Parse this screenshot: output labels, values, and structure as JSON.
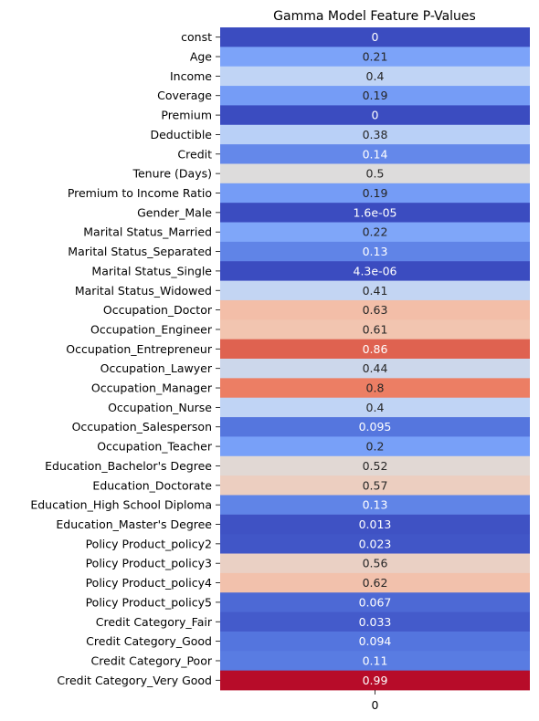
{
  "chart_data": {
    "type": "heatmap",
    "title": "Gamma Model Feature P-Values",
    "columns": [
      "0"
    ],
    "colormap": "coolwarm",
    "vmin": 0,
    "vmax": 1,
    "colorbar": false,
    "rows": [
      {
        "label": "const",
        "value": 0,
        "text": "0"
      },
      {
        "label": "Age",
        "value": 0.21,
        "text": "0.21"
      },
      {
        "label": "Income",
        "value": 0.4,
        "text": "0.4"
      },
      {
        "label": "Coverage",
        "value": 0.19,
        "text": "0.19"
      },
      {
        "label": "Premium",
        "value": 0,
        "text": "0"
      },
      {
        "label": "Deductible",
        "value": 0.38,
        "text": "0.38"
      },
      {
        "label": "Credit",
        "value": 0.14,
        "text": "0.14"
      },
      {
        "label": "Tenure (Days)",
        "value": 0.5,
        "text": "0.5"
      },
      {
        "label": "Premium to Income Ratio",
        "value": 0.19,
        "text": "0.19"
      },
      {
        "label": "Gender_Male",
        "value": 1.6e-05,
        "text": "1.6e-05"
      },
      {
        "label": "Marital Status_Married",
        "value": 0.22,
        "text": "0.22"
      },
      {
        "label": "Marital Status_Separated",
        "value": 0.13,
        "text": "0.13"
      },
      {
        "label": "Marital Status_Single",
        "value": 4.3e-06,
        "text": "4.3e-06"
      },
      {
        "label": "Marital Status_Widowed",
        "value": 0.41,
        "text": "0.41"
      },
      {
        "label": "Occupation_Doctor",
        "value": 0.63,
        "text": "0.63"
      },
      {
        "label": "Occupation_Engineer",
        "value": 0.61,
        "text": "0.61"
      },
      {
        "label": "Occupation_Entrepreneur",
        "value": 0.86,
        "text": "0.86"
      },
      {
        "label": "Occupation_Lawyer",
        "value": 0.44,
        "text": "0.44"
      },
      {
        "label": "Occupation_Manager",
        "value": 0.8,
        "text": "0.8"
      },
      {
        "label": "Occupation_Nurse",
        "value": 0.4,
        "text": "0.4"
      },
      {
        "label": "Occupation_Salesperson",
        "value": 0.095,
        "text": "0.095"
      },
      {
        "label": "Occupation_Teacher",
        "value": 0.2,
        "text": "0.2"
      },
      {
        "label": "Education_Bachelor's Degree",
        "value": 0.52,
        "text": "0.52"
      },
      {
        "label": "Education_Doctorate",
        "value": 0.57,
        "text": "0.57"
      },
      {
        "label": "Education_High School Diploma",
        "value": 0.13,
        "text": "0.13"
      },
      {
        "label": "Education_Master's Degree",
        "value": 0.013,
        "text": "0.013"
      },
      {
        "label": "Policy Product_policy2",
        "value": 0.023,
        "text": "0.023"
      },
      {
        "label": "Policy Product_policy3",
        "value": 0.56,
        "text": "0.56"
      },
      {
        "label": "Policy Product_policy4",
        "value": 0.62,
        "text": "0.62"
      },
      {
        "label": "Policy Product_policy5",
        "value": 0.067,
        "text": "0.067"
      },
      {
        "label": "Credit Category_Fair",
        "value": 0.033,
        "text": "0.033"
      },
      {
        "label": "Credit Category_Good",
        "value": 0.094,
        "text": "0.094"
      },
      {
        "label": "Credit Category_Poor",
        "value": 0.11,
        "text": "0.11"
      },
      {
        "label": "Credit Category_Very Good",
        "value": 0.99,
        "text": "0.99"
      }
    ]
  }
}
